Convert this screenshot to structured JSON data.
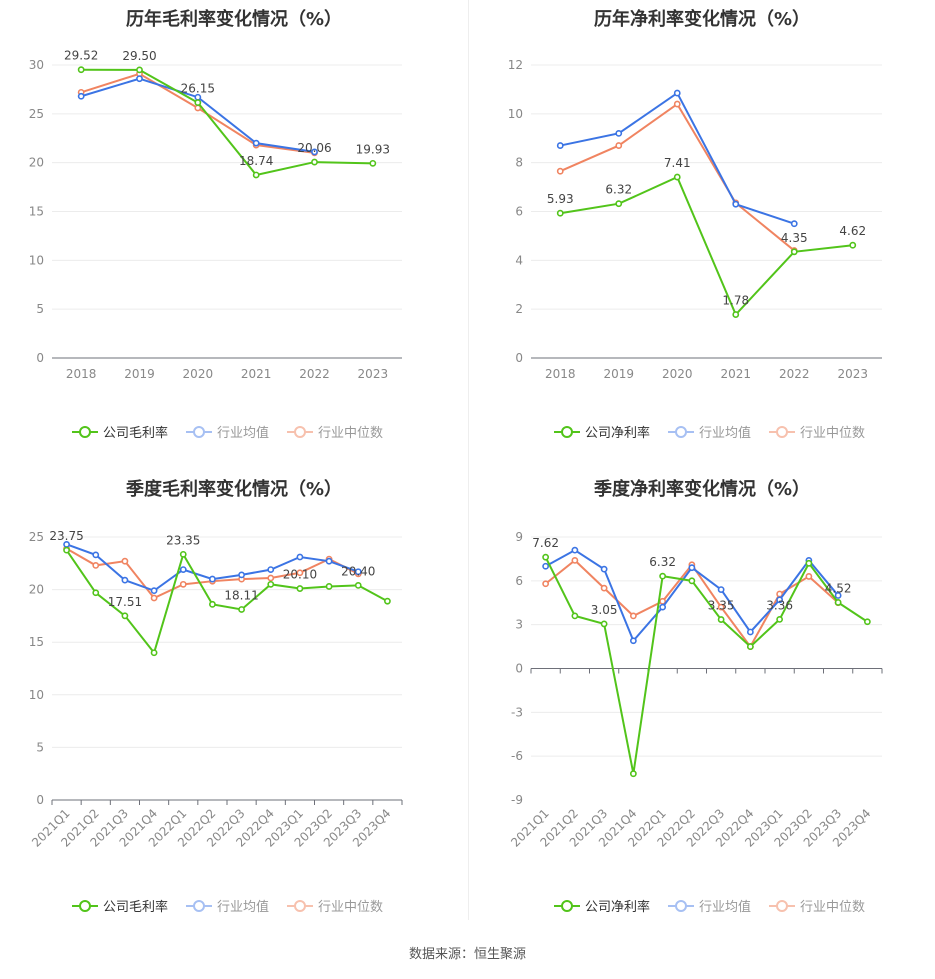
{
  "source": "数据来源：恒生聚源",
  "colors": {
    "company": "#52c41a",
    "avg": "#3b74e4",
    "median": "#f08461"
  },
  "chart_data": [
    {
      "type": "line",
      "title": "历年毛利率变化情况（%）",
      "categories": [
        "2018",
        "2019",
        "2020",
        "2021",
        "2022",
        "2023"
      ],
      "ylim": [
        0,
        30
      ],
      "yticks": [
        0,
        5,
        10,
        15,
        20,
        25,
        30
      ],
      "legend": "bottom",
      "series": [
        {
          "name": "公司毛利率",
          "values": [
            29.52,
            29.5,
            26.15,
            18.74,
            20.06,
            19.93
          ],
          "labels": [
            true,
            true,
            true,
            true,
            true,
            true
          ]
        },
        {
          "name": "行业均值",
          "values": [
            26.8,
            28.6,
            26.7,
            22.0,
            21.1,
            null
          ]
        },
        {
          "name": "行业中位数",
          "values": [
            27.2,
            29.1,
            25.6,
            21.8,
            21.0,
            null
          ]
        }
      ]
    },
    {
      "type": "line",
      "title": "历年净利率变化情况（%）",
      "categories": [
        "2018",
        "2019",
        "2020",
        "2021",
        "2022",
        "2023"
      ],
      "ylim": [
        0,
        12
      ],
      "yticks": [
        0,
        2,
        4,
        6,
        8,
        10,
        12
      ],
      "legend": "bottom",
      "series": [
        {
          "name": "公司净利率",
          "values": [
            5.93,
            6.32,
            7.41,
            1.78,
            4.35,
            4.62
          ],
          "labels": [
            true,
            true,
            true,
            true,
            true,
            true
          ]
        },
        {
          "name": "行业均值",
          "values": [
            8.7,
            9.2,
            10.85,
            6.3,
            5.5,
            null
          ]
        },
        {
          "name": "行业中位数",
          "values": [
            7.65,
            8.7,
            10.4,
            6.35,
            4.4,
            null
          ]
        }
      ]
    },
    {
      "type": "line",
      "title": "季度毛利率变化情况（%）",
      "categories": [
        "2021Q1",
        "2021Q2",
        "2021Q3",
        "2021Q4",
        "2022Q1",
        "2022Q2",
        "2022Q3",
        "2022Q4",
        "2023Q1",
        "2023Q2",
        "2023Q3",
        "2023Q4"
      ],
      "ylim": [
        0,
        25
      ],
      "yticks": [
        0,
        5,
        10,
        15,
        20,
        25
      ],
      "legend": "bottom",
      "series": [
        {
          "name": "公司毛利率",
          "values": [
            23.75,
            19.7,
            17.51,
            14.0,
            23.35,
            18.6,
            18.11,
            20.5,
            20.1,
            20.3,
            20.4,
            18.9
          ],
          "labels": [
            true,
            false,
            true,
            false,
            true,
            false,
            true,
            false,
            true,
            false,
            true,
            false
          ]
        },
        {
          "name": "行业均值",
          "values": [
            24.3,
            23.3,
            20.9,
            19.9,
            21.9,
            21.0,
            21.4,
            21.9,
            23.1,
            22.7,
            21.7,
            null
          ]
        },
        {
          "name": "行业中位数",
          "values": [
            23.9,
            22.3,
            22.7,
            19.2,
            20.5,
            20.8,
            21.0,
            21.1,
            21.6,
            22.9,
            21.5,
            null
          ]
        }
      ]
    },
    {
      "type": "line",
      "title": "季度净利率变化情况（%）",
      "categories": [
        "2021Q1",
        "2021Q2",
        "2021Q3",
        "2021Q4",
        "2022Q1",
        "2022Q2",
        "2022Q3",
        "2022Q4",
        "2023Q1",
        "2023Q2",
        "2023Q3",
        "2023Q4"
      ],
      "ylim": [
        -9,
        9
      ],
      "yticks": [
        -9,
        -6,
        -3,
        0,
        3,
        6,
        9
      ],
      "legend": "bottom",
      "series": [
        {
          "name": "公司净利率",
          "values": [
            7.62,
            3.6,
            3.05,
            -7.2,
            6.32,
            6.0,
            3.35,
            1.5,
            3.36,
            7.2,
            4.52,
            3.2
          ],
          "labels": [
            true,
            false,
            true,
            false,
            true,
            false,
            true,
            false,
            true,
            false,
            true,
            false
          ]
        },
        {
          "name": "行业均值",
          "values": [
            7.0,
            8.1,
            6.8,
            1.9,
            4.2,
            6.9,
            5.4,
            2.5,
            4.7,
            7.4,
            5.0,
            null
          ]
        },
        {
          "name": "行业中位数",
          "values": [
            5.8,
            7.4,
            5.5,
            3.6,
            4.6,
            7.1,
            4.2,
            1.5,
            5.1,
            6.3,
            4.5,
            null
          ]
        }
      ]
    }
  ]
}
